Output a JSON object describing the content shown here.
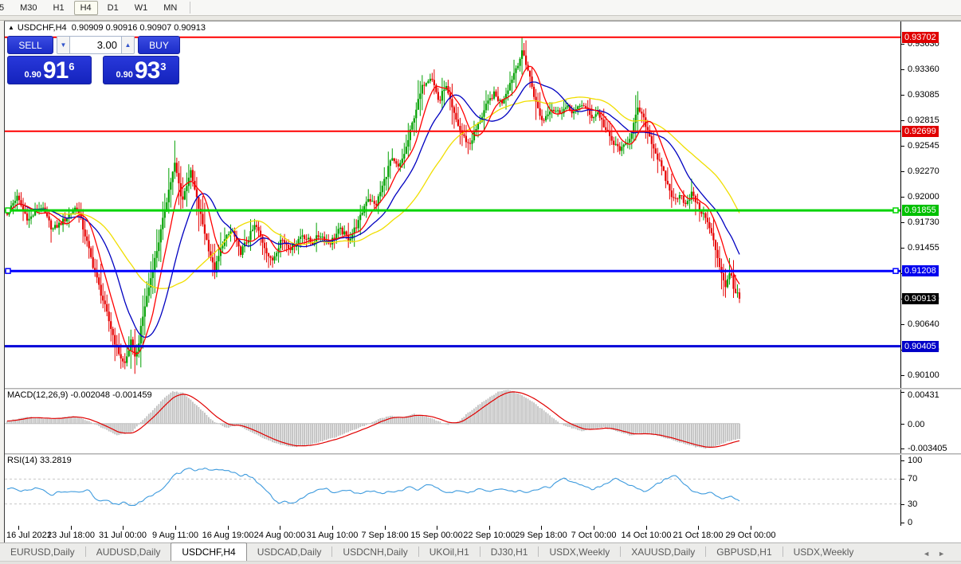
{
  "toolbar": {
    "timeframes": [
      "5",
      "M30",
      "H1",
      "H4",
      "D1",
      "W1",
      "MN"
    ],
    "active": "H4"
  },
  "chart_header": {
    "collapse_icon": "▲",
    "symbol": "USDCHF,H4",
    "ohlc": "0.90909 0.90916 0.90907 0.90913"
  },
  "trade_panel": {
    "sell_label": "SELL",
    "buy_label": "BUY",
    "volume": "3.00",
    "down_icon": "▼",
    "up_icon": "▲",
    "sell_price": {
      "small": "0.90",
      "big": "91",
      "sup": "6"
    },
    "buy_price": {
      "small": "0.90",
      "big": "93",
      "sup": "3"
    }
  },
  "tabs": {
    "items": [
      "EURUSD,Daily",
      "AUDUSD,Daily",
      "USDCHF,H4",
      "USDCAD,Daily",
      "USDCNH,Daily",
      "UKOil,H1",
      "DJ30,H1",
      "USDX,Weekly",
      "XAUUSD,Daily",
      "GBPUSD,H1",
      "USDX,Weekly"
    ],
    "active_index": 2,
    "scroll_left_icon": "◄",
    "scroll_right_icon": "►"
  },
  "chart_data": {
    "type": "candlestick",
    "symbol": "USDCHF",
    "timeframe": "H4",
    "current_bar": {
      "open": "0.90909",
      "high": "0.90916",
      "low": "0.90907",
      "close": "0.90913"
    },
    "price_range": {
      "top": 0.9387,
      "bottom": 0.8996
    },
    "extremes": {
      "high": 0.937,
      "low": 0.9016
    },
    "bars": 368,
    "up_color": "#00A000",
    "down_color": "#E60000",
    "price_axis": {
      "ticks": [
        "0.93630",
        "0.93360",
        "0.93085",
        "0.92815",
        "0.92545",
        "0.92270",
        "0.92000",
        "0.91730",
        "0.91455",
        "0.91185",
        "0.90910",
        "0.90640",
        "0.90370",
        "0.90100"
      ],
      "current_price": {
        "value": "0.90913",
        "bg": "#000000",
        "fg": "#ffffff"
      }
    },
    "levels": [
      {
        "price": 0.93702,
        "label": "0.93702",
        "color": "#FF0000",
        "label_bg": "#E00000",
        "width": 2,
        "handles": false
      },
      {
        "price": 0.92699,
        "label": "0.92699",
        "color": "#FF0000",
        "label_bg": "#E00000",
        "width": 2,
        "handles": false
      },
      {
        "price": 0.91855,
        "label": "0.91855",
        "color": "#00D300",
        "label_bg": "#00C000",
        "width": 3,
        "handles": true
      },
      {
        "price": 0.91208,
        "label": "0.91208",
        "color": "#0000FF",
        "label_bg": "#0000EE",
        "width": 3,
        "handles": true
      },
      {
        "price": 0.90405,
        "label": "0.90405",
        "color": "#0000D8",
        "label_bg": "#0000C8",
        "width": 3,
        "handles": false
      }
    ],
    "moving_averages": [
      {
        "name": "slow-ma",
        "period": 48,
        "color": "#F0DE00"
      },
      {
        "name": "mid-ma",
        "period": 22,
        "color": "#0000C0"
      },
      {
        "name": "fast-ma",
        "period": 10,
        "color": "#FF0000"
      }
    ],
    "close_path": {
      "t": [
        0.0,
        0.013,
        0.029,
        0.046,
        0.062,
        0.078,
        0.095,
        0.106,
        0.116,
        0.127,
        0.138,
        0.149,
        0.16,
        0.169,
        0.176,
        0.187,
        0.198,
        0.209,
        0.22,
        0.229,
        0.239,
        0.25,
        0.261,
        0.272,
        0.283,
        0.294,
        0.307,
        0.318,
        0.329,
        0.339,
        0.35,
        0.361,
        0.374,
        0.388,
        0.403,
        0.416,
        0.427,
        0.44,
        0.454,
        0.467,
        0.481,
        0.492,
        0.503,
        0.514,
        0.524,
        0.535,
        0.546,
        0.557,
        0.568,
        0.579,
        0.59,
        0.598,
        0.609,
        0.62,
        0.631,
        0.642,
        0.653,
        0.664,
        0.675,
        0.686,
        0.696,
        0.704,
        0.713,
        0.722,
        0.731,
        0.742,
        0.753,
        0.764,
        0.775,
        0.786,
        0.797,
        0.807,
        0.818,
        0.829,
        0.84,
        0.851,
        0.862,
        0.873,
        0.884,
        0.894,
        0.903,
        0.911,
        0.919,
        0.927,
        0.936,
        0.943,
        0.952,
        0.96,
        0.967,
        0.975,
        0.981,
        0.988,
        0.993,
        1.0
      ],
      "close": [
        0.9183,
        0.92,
        0.9175,
        0.919,
        0.9165,
        0.9175,
        0.919,
        0.916,
        0.913,
        0.91,
        0.907,
        0.904,
        0.902,
        0.9045,
        0.9028,
        0.908,
        0.912,
        0.916,
        0.9205,
        0.9235,
        0.9195,
        0.9228,
        0.919,
        0.9155,
        0.912,
        0.915,
        0.9165,
        0.914,
        0.9155,
        0.917,
        0.915,
        0.913,
        0.9155,
        0.9145,
        0.916,
        0.915,
        0.916,
        0.915,
        0.9165,
        0.9155,
        0.9175,
        0.92,
        0.919,
        0.9215,
        0.924,
        0.923,
        0.9255,
        0.929,
        0.932,
        0.933,
        0.93,
        0.932,
        0.929,
        0.9268,
        0.9255,
        0.9275,
        0.9295,
        0.931,
        0.93,
        0.932,
        0.934,
        0.9355,
        0.933,
        0.93,
        0.928,
        0.9295,
        0.929,
        0.9295,
        0.929,
        0.93,
        0.9285,
        0.929,
        0.927,
        0.9255,
        0.925,
        0.9265,
        0.9295,
        0.9275,
        0.925,
        0.923,
        0.921,
        0.9195,
        0.9205,
        0.919,
        0.9205,
        0.919,
        0.918,
        0.9165,
        0.9145,
        0.912,
        0.9105,
        0.912,
        0.91,
        0.90913
      ]
    },
    "date_axis": {
      "labels": [
        "16 Jul 2021",
        "23 Jul 18:00",
        "31 Jul 00:00",
        "9 Aug 11:00",
        "16 Aug 19:00",
        "24 Aug 00:00",
        "31 Aug 10:00",
        "7 Sep 18:00",
        "15 Sep 00:00",
        "22 Sep 10:00",
        "29 Sep 18:00",
        "7 Oct 00:00",
        "14 Oct 10:00",
        "21 Oct 18:00",
        "29 Oct 00:00"
      ]
    },
    "macd": {
      "title": "MACD(12,26,9)",
      "values": "-0.002048 -0.001459",
      "axis_ticks": [
        "0.00431",
        "0.00",
        "-0.003405"
      ],
      "max": 0.00431,
      "min": -0.003405,
      "hist_color": "#C0C0C0",
      "signal_color": "#E00000",
      "t": [
        0.0,
        0.03,
        0.06,
        0.09,
        0.11,
        0.13,
        0.15,
        0.17,
        0.185,
        0.21,
        0.225,
        0.24,
        0.26,
        0.28,
        0.3,
        0.315,
        0.33,
        0.35,
        0.37,
        0.39,
        0.41,
        0.43,
        0.45,
        0.47,
        0.49,
        0.51,
        0.525,
        0.54,
        0.555,
        0.57,
        0.585,
        0.6,
        0.615,
        0.63,
        0.65,
        0.67,
        0.685,
        0.7,
        0.72,
        0.74,
        0.755,
        0.77,
        0.785,
        0.8,
        0.815,
        0.83,
        0.85,
        0.87,
        0.885,
        0.9,
        0.92,
        0.94,
        0.955,
        0.97,
        0.985,
        1.0
      ],
      "v": [
        0.0004,
        0.0009,
        0.0006,
        0.001,
        0.0004,
        -0.0006,
        -0.0016,
        -0.0012,
        0.0004,
        0.003,
        0.0044,
        0.0042,
        0.0024,
        0.0004,
        -0.0006,
        -0.0002,
        -0.001,
        -0.002,
        -0.0028,
        -0.0032,
        -0.003,
        -0.0024,
        -0.0018,
        -0.001,
        -0.0002,
        0.0007,
        0.0011,
        0.0008,
        0.0013,
        0.001,
        0.0005,
        -0.0002,
        0.0002,
        0.0015,
        0.003,
        0.0043,
        0.0046,
        0.004,
        0.0028,
        0.0012,
        0.0,
        -0.0006,
        -0.001,
        -0.0008,
        -0.0005,
        -0.001,
        -0.0016,
        -0.0013,
        -0.0016,
        -0.002,
        -0.0026,
        -0.0032,
        -0.0034,
        -0.003,
        -0.0024,
        -0.00205
      ]
    },
    "rsi": {
      "title": "RSI(14)",
      "value": "33.2819",
      "axis_ticks": [
        "100",
        "70",
        "30",
        "0"
      ],
      "levels": [
        70,
        30
      ],
      "color": "#3E9BDE",
      "level_color": "#C8C8C8",
      "t": [
        0.0,
        0.02,
        0.04,
        0.06,
        0.08,
        0.1,
        0.11,
        0.12,
        0.135,
        0.15,
        0.16,
        0.17,
        0.185,
        0.2,
        0.215,
        0.23,
        0.25,
        0.27,
        0.285,
        0.3,
        0.315,
        0.33,
        0.345,
        0.36,
        0.37,
        0.38,
        0.39,
        0.4,
        0.42,
        0.435,
        0.45,
        0.465,
        0.48,
        0.5,
        0.515,
        0.53,
        0.55,
        0.56,
        0.575,
        0.59,
        0.6,
        0.615,
        0.63,
        0.645,
        0.66,
        0.675,
        0.69,
        0.7,
        0.715,
        0.73,
        0.745,
        0.76,
        0.775,
        0.79,
        0.8,
        0.815,
        0.83,
        0.84,
        0.855,
        0.87,
        0.885,
        0.9,
        0.91,
        0.92,
        0.93,
        0.94,
        0.95,
        0.96,
        0.97,
        0.98,
        0.99,
        1.0
      ],
      "v": [
        57,
        50,
        55,
        45,
        52,
        48,
        55,
        40,
        35,
        28,
        33,
        27,
        35,
        45,
        60,
        78,
        85,
        87,
        84,
        86,
        75,
        77,
        60,
        45,
        30,
        35,
        28,
        38,
        50,
        55,
        48,
        52,
        45,
        52,
        47,
        50,
        58,
        52,
        62,
        55,
        45,
        52,
        48,
        55,
        50,
        55,
        48,
        52,
        48,
        55,
        60,
        72,
        65,
        58,
        52,
        62,
        70,
        65,
        58,
        50,
        60,
        70,
        75,
        68,
        55,
        48,
        45,
        50,
        42,
        38,
        45,
        33.3
      ]
    }
  }
}
